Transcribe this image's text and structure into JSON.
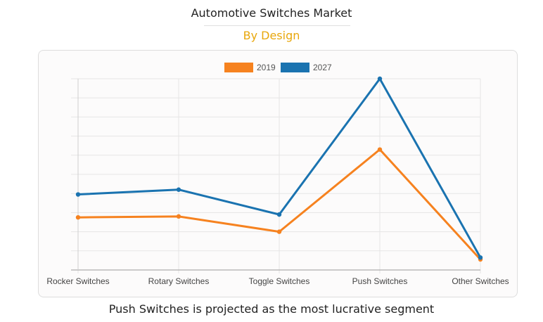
{
  "header": {
    "title": "Automotive Switches Market",
    "subtitle": "By Design"
  },
  "footer": {
    "text": "Push Switches is projected as the most lucrative segment"
  },
  "chart_data": {
    "type": "line",
    "title": "Automotive Switches Market",
    "subtitle": "By Design",
    "categories": [
      "Rocker Switches",
      "Rotary Switches",
      "Toggle Switches",
      "Push Switches",
      "Other Switches"
    ],
    "series": [
      {
        "name": "2019",
        "color": "#f6821f",
        "values": [
          27.5,
          28,
          20,
          63,
          5.5
        ]
      },
      {
        "name": "2027",
        "color": "#1a73b0",
        "values": [
          39.5,
          42,
          29,
          100,
          6.5
        ]
      }
    ],
    "ylim": [
      0,
      100
    ],
    "y_gridlines": 10,
    "y_tick_labels_shown": false,
    "xlabel": "",
    "ylabel": "",
    "legend": "top-center",
    "grid": true
  }
}
